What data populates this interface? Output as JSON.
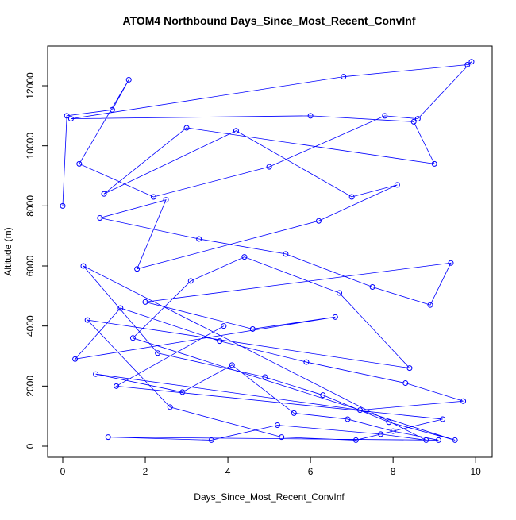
{
  "chart_data": {
    "type": "line",
    "title": "ATOM4 Northbound Days_Since_Most_Recent_ConvInf",
    "x_label": "Days_Since_Most_Recent_ConvInf",
    "y_label": "Altitude (m)",
    "xlim": [
      -0.365,
      10.4
    ],
    "ylim": [
      -370,
      13322
    ],
    "xticks": [
      0,
      2,
      4,
      6,
      8,
      10
    ],
    "yticks": [
      0,
      2000,
      4000,
      6000,
      8000,
      10000,
      12000
    ],
    "grid": false,
    "x": [
      0.0,
      0.1,
      1.2,
      1.6,
      0.4,
      2.2,
      5.0,
      7.8,
      8.6,
      9.9,
      9.8,
      6.8,
      0.2,
      6.0,
      8.5,
      9.0,
      3.0,
      1.0,
      4.2,
      7.0,
      8.1,
      6.2,
      1.8,
      2.5,
      0.9,
      3.3,
      5.4,
      7.5,
      8.9,
      9.4,
      2.0,
      4.6,
      6.6,
      0.3,
      1.4,
      3.8,
      5.9,
      8.3,
      9.7,
      7.2,
      0.8,
      2.9,
      4.1,
      5.6,
      6.9,
      8.0,
      9.1,
      1.1,
      3.6,
      5.2,
      7.7,
      8.8,
      0.5,
      2.3,
      4.9,
      6.3,
      7.9,
      9.5,
      1.7,
      3.1,
      4.4,
      6.7,
      8.4,
      0.6,
      2.6,
      5.3,
      7.1,
      9.2,
      1.3,
      3.9
    ],
    "series": [
      {
        "color": "#0000ff",
        "values": [
          8000,
          11000,
          11200,
          12200,
          9400,
          8300,
          9300,
          11000,
          10900,
          12800,
          12700,
          12300,
          10900,
          11000,
          10800,
          9400,
          10600,
          8400,
          10500,
          8300,
          8700,
          7500,
          5900,
          8200,
          7600,
          6900,
          6400,
          5300,
          4700,
          6100,
          4800,
          3900,
          4300,
          2900,
          4600,
          3500,
          2800,
          2100,
          1500,
          1200,
          2400,
          1800,
          2700,
          1100,
          900,
          500,
          200,
          300,
          200,
          700,
          400,
          200,
          6000,
          3100,
          2300,
          1700,
          800,
          200,
          3600,
          5500,
          6300,
          5100,
          2600,
          4200,
          1300,
          300,
          200,
          900,
          2000,
          4000
        ]
      }
    ]
  }
}
